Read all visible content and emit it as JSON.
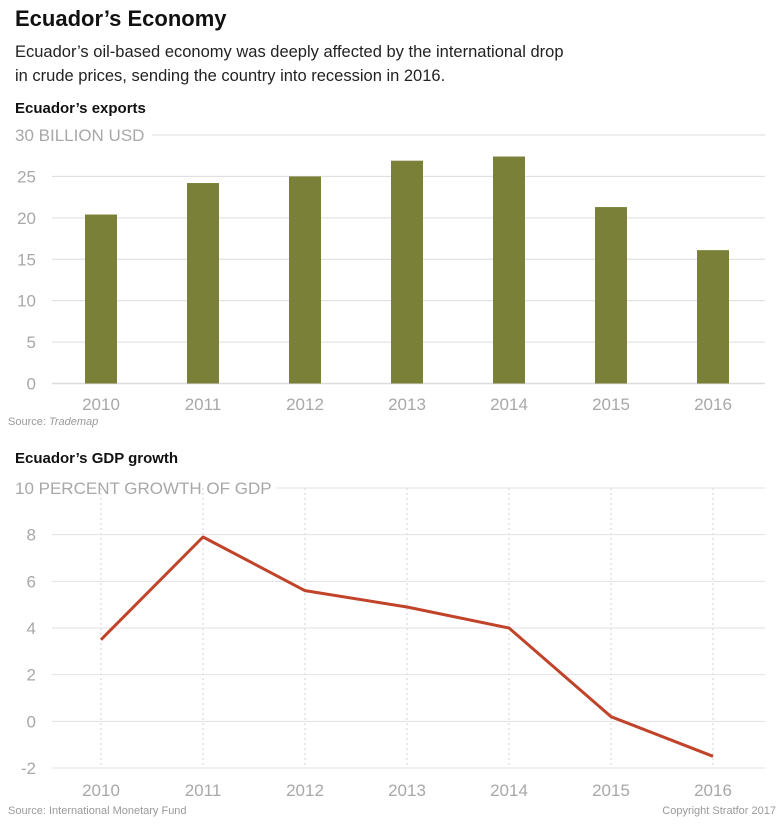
{
  "header": {
    "title": "Ecuador’s Economy",
    "subtitle": "Ecuador’s oil-based economy was deeply affected by the international drop in crude prices, sending the country into recession in 2016."
  },
  "footer": {
    "copyright": "Copyright Stratfor 2017"
  },
  "chart_data": [
    {
      "type": "bar",
      "title": "Ecuador’s exports",
      "ylabel": "BILLION USD",
      "categories": [
        "2010",
        "2011",
        "2012",
        "2013",
        "2014",
        "2015",
        "2016"
      ],
      "values": [
        20.4,
        24.2,
        25.0,
        26.9,
        27.4,
        21.3,
        16.1
      ],
      "ylim": [
        0,
        30
      ],
      "yticks": [
        0,
        5,
        10,
        15,
        20,
        25,
        30
      ],
      "grid": true,
      "source_prefix": "Source: ",
      "source": "Trademap",
      "color": "#7a8038"
    },
    {
      "type": "line",
      "title": "Ecuador’s GDP growth",
      "ylabel": "PERCENT GROWTH OF GDP",
      "categories": [
        "2010",
        "2011",
        "2012",
        "2013",
        "2014",
        "2015",
        "2016"
      ],
      "values": [
        3.5,
        7.9,
        5.6,
        4.9,
        4.0,
        0.2,
        -1.5
      ],
      "ylim": [
        -2,
        10
      ],
      "yticks": [
        -2,
        0,
        2,
        4,
        6,
        8,
        10
      ],
      "grid": true,
      "source": "Source: International Monetary Fund",
      "color": "#c0432a"
    }
  ]
}
